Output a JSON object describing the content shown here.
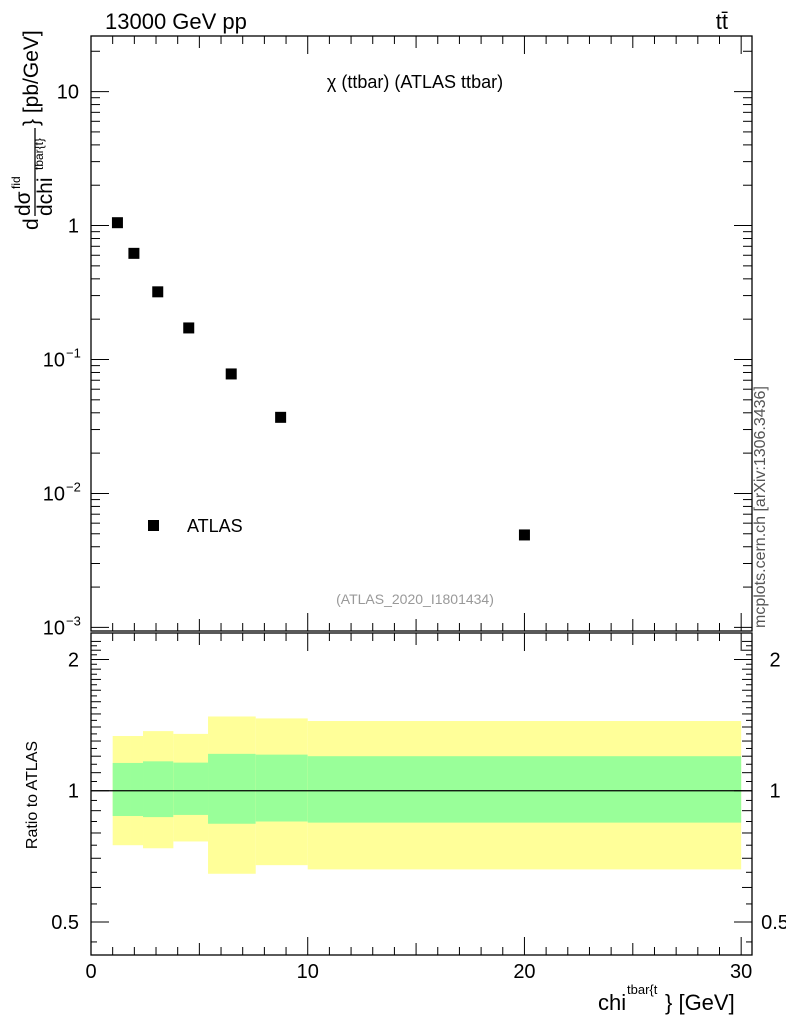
{
  "header": {
    "left": "13000 GeV pp",
    "right": "tt̄"
  },
  "side_note": "mcplots.cern.ch [arXiv:1306.3436]",
  "analysis_id": "(ATLAS_2020_I1801434)",
  "chart_data": [
    {
      "type": "scatter",
      "title": "χ (ttbar) (ATLAS ttbar)",
      "ylabel": "dσ^fid / dchi^tbar{t} [pb/GeV]",
      "xlabel": "chi^tbar{t} [GeV]",
      "xlim": [
        0,
        30.5
      ],
      "ylim": [
        0.00094,
        26
      ],
      "yscale": "log",
      "x_ticks": [
        "0",
        "10",
        "20",
        "30"
      ],
      "y_ticks": [
        {
          "value": 10,
          "label": "10"
        },
        {
          "value": 1,
          "label": "1"
        },
        {
          "value": 0.1,
          "base": "10",
          "exp": "−1"
        },
        {
          "value": 0.01,
          "base": "10",
          "exp": "−2"
        },
        {
          "value": 0.001,
          "base": "10",
          "exp": "−3"
        }
      ],
      "legend": "bottom-left",
      "series": [
        {
          "name": "ATLAS",
          "color": "#000000",
          "x": [
            1.22,
            1.98,
            3.08,
            4.51,
            6.47,
            8.75,
            20.0
          ],
          "y": [
            1.05,
            0.62,
            0.32,
            0.172,
            0.078,
            0.037,
            0.0049
          ]
        }
      ]
    },
    {
      "type": "area",
      "ylabel": "Ratio to ATLAS",
      "xlim": [
        0,
        30.5
      ],
      "ylim": [
        0.42,
        2.3
      ],
      "yscale": "log",
      "y_ticks": [
        "0.5",
        "1",
        "2"
      ],
      "reference": 1.0,
      "bins": [
        {
          "x0": 1.0,
          "x1": 1.8,
          "inner": [
            0.875,
            1.158
          ],
          "outer": [
            0.75,
            1.335
          ]
        },
        {
          "x0": 1.8,
          "x1": 2.4,
          "inner": [
            0.875,
            1.158
          ],
          "outer": [
            0.75,
            1.335
          ]
        },
        {
          "x0": 2.4,
          "x1": 3.8,
          "inner": [
            0.87,
            1.168
          ],
          "outer": [
            0.738,
            1.37
          ]
        },
        {
          "x0": 3.8,
          "x1": 5.4,
          "inner": [
            0.88,
            1.16
          ],
          "outer": [
            0.765,
            1.35
          ]
        },
        {
          "x0": 5.4,
          "x1": 7.6,
          "inner": [
            0.84,
            1.215
          ],
          "outer": [
            0.645,
            1.48
          ]
        },
        {
          "x0": 7.6,
          "x1": 10.0,
          "inner": [
            0.85,
            1.21
          ],
          "outer": [
            0.675,
            1.465
          ]
        },
        {
          "x0": 10.0,
          "x1": 30.0,
          "inner": [
            0.845,
            1.2
          ],
          "outer": [
            0.66,
            1.445
          ]
        }
      ],
      "colors": {
        "inner": "#99ff99",
        "outer": "#ffff99"
      }
    }
  ]
}
